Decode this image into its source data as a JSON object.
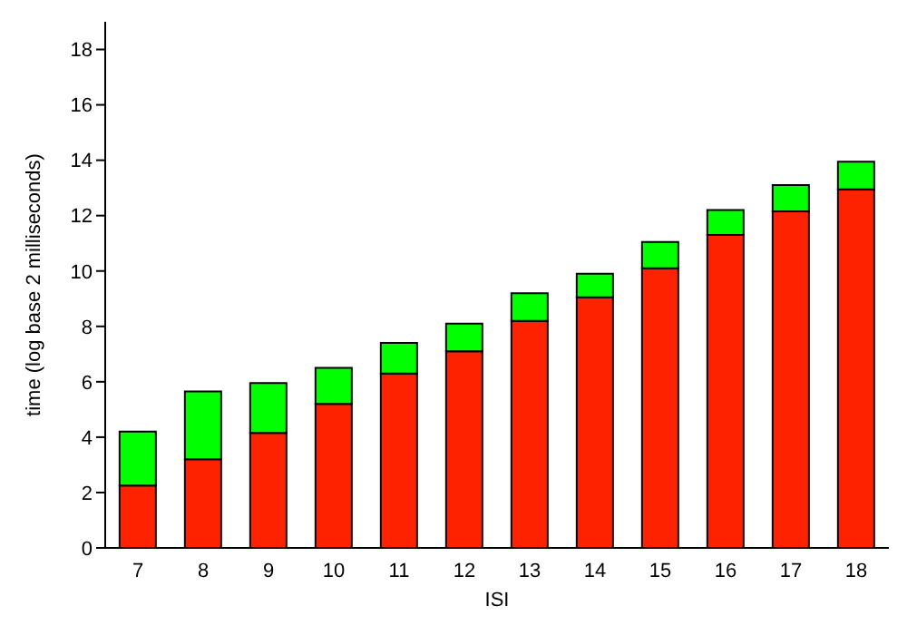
{
  "chart_data": {
    "type": "bar",
    "stacked": true,
    "xlabel": "ISI",
    "ylabel": "time (log base 2 milliseconds)",
    "categories": [
      "7",
      "8",
      "9",
      "10",
      "11",
      "12",
      "13",
      "14",
      "15",
      "16",
      "17",
      "18"
    ],
    "series": [
      {
        "color": "#ff2200",
        "values": [
          2.25,
          3.2,
          4.15,
          5.2,
          6.3,
          7.1,
          8.2,
          9.05,
          10.1,
          11.3,
          12.15,
          12.95
        ]
      },
      {
        "color": "#00ff00",
        "values": [
          1.95,
          2.45,
          1.8,
          1.3,
          1.1,
          1.0,
          1.0,
          0.85,
          0.95,
          0.9,
          0.95,
          1.0
        ]
      }
    ],
    "ylim": [
      0,
      19
    ],
    "yticks": [
      0,
      2,
      4,
      6,
      8,
      10,
      12,
      14,
      16,
      18
    ],
    "grid": false,
    "legend": false
  }
}
